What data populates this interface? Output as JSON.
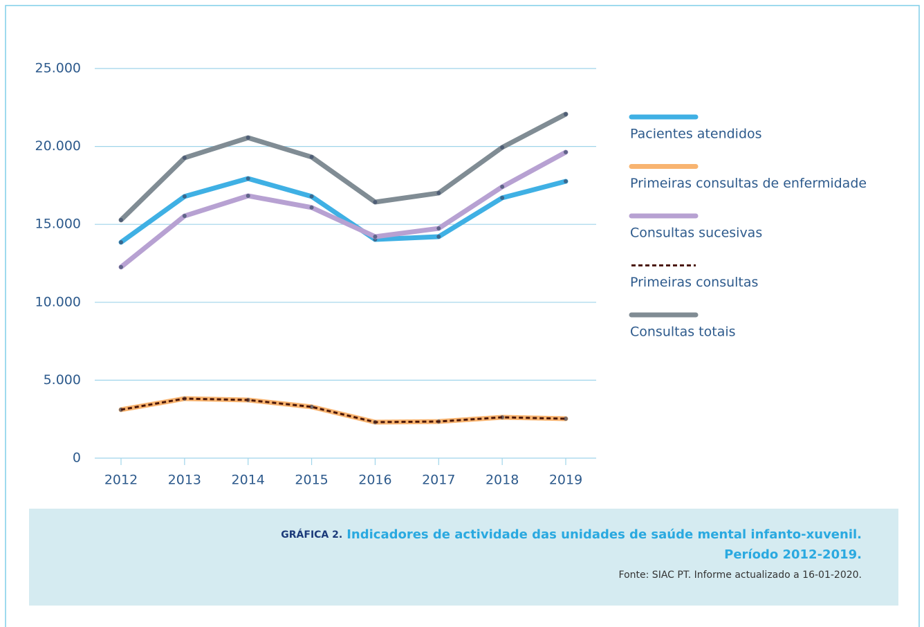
{
  "chart_data": {
    "type": "line",
    "categories": [
      "2012",
      "2013",
      "2014",
      "2015",
      "2016",
      "2017",
      "2018",
      "2019"
    ],
    "series": [
      {
        "name": "Pacientes atendidos",
        "color": "#3fb0e4",
        "values": [
          13850,
          16790,
          17940,
          16790,
          14030,
          14210,
          16700,
          17760
        ]
      },
      {
        "name": "Primeiras consultas de enfermidade",
        "color": "#f8b470",
        "values": [
          3110,
          3820,
          3730,
          3290,
          2310,
          2350,
          2620,
          2530
        ]
      },
      {
        "name": "Consultas sucesivas",
        "color": "#b7a1d2",
        "values": [
          12260,
          15540,
          16830,
          16080,
          14210,
          14740,
          17410,
          19630
        ]
      },
      {
        "name": "Primeiras consultas",
        "color": "#4a1608",
        "line_style": "dotted",
        "values": [
          3110,
          3820,
          3730,
          3290,
          2310,
          2350,
          2620,
          2530
        ]
      },
      {
        "name": "Consultas totais",
        "color": "#808c94",
        "values": [
          15280,
          19270,
          20560,
          19320,
          16430,
          17010,
          19940,
          22070
        ]
      }
    ],
    "ylim": [
      0,
      25000
    ],
    "yticks": [
      0,
      {
        "value": 5000,
        "label": "5.000"
      },
      {
        "value": 10000,
        "label": "10.000"
      },
      {
        "value": 15000,
        "label": "15.000"
      },
      {
        "value": 20000,
        "label": "20.000"
      },
      {
        "value": 25000,
        "label": "25.000"
      }
    ],
    "grid": true,
    "legend": "right",
    "caption": {
      "label": "GRÁFICA 2.",
      "title_lines": [
        "Indicadores de actividade das unidades de saúde mental infanto-xuvenil.",
        "Período 2012-2019."
      ],
      "source": "Fonte: SIAC PT. Informe actualizado a 16-01-2020."
    }
  }
}
